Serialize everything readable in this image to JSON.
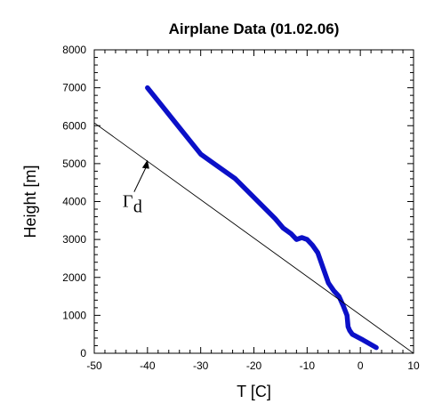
{
  "chart_data": {
    "type": "line",
    "title": "Airplane Data (01.02.06)",
    "xlabel": "T [C]",
    "ylabel": "Height [m]",
    "xlim": [
      -50,
      10
    ],
    "ylim": [
      0,
      8000
    ],
    "xticks": [
      -50,
      -40,
      -30,
      -20,
      -10,
      0,
      10
    ],
    "yticks": [
      0,
      1000,
      2000,
      3000,
      4000,
      5000,
      6000,
      7000,
      8000
    ],
    "grid": false,
    "series": [
      {
        "color": "#0b10c8",
        "x": [
          3.0,
          0.5,
          -1.5,
          -2.0,
          -2.3,
          -2.5,
          -3.2,
          -4.0,
          -5.0,
          -6.0,
          -7.0,
          -8.0,
          -9.0,
          -10.0,
          -11.0,
          -12.0,
          -13.0,
          -14.5,
          -16.0,
          -18.5,
          -21.0,
          -23.5,
          -25.5,
          -28.0,
          -30.0,
          -32.0,
          -34.0,
          -36.0,
          -38.0,
          -40.0
        ],
        "y": [
          150,
          350,
          500,
          600,
          700,
          1000,
          1250,
          1500,
          1650,
          1850,
          2250,
          2650,
          2850,
          3000,
          3050,
          3000,
          3150,
          3300,
          3550,
          3900,
          4250,
          4600,
          4800,
          5050,
          5250,
          5600,
          5950,
          6300,
          6650,
          7000
        ]
      },
      {
        "color": "#000000",
        "x": [
          -50,
          10
        ],
        "y": [
          6075,
          0
        ]
      }
    ],
    "annotations": [
      {
        "text": "Γ",
        "subscript": "d",
        "target": [
          -40,
          5100
        ]
      }
    ]
  }
}
